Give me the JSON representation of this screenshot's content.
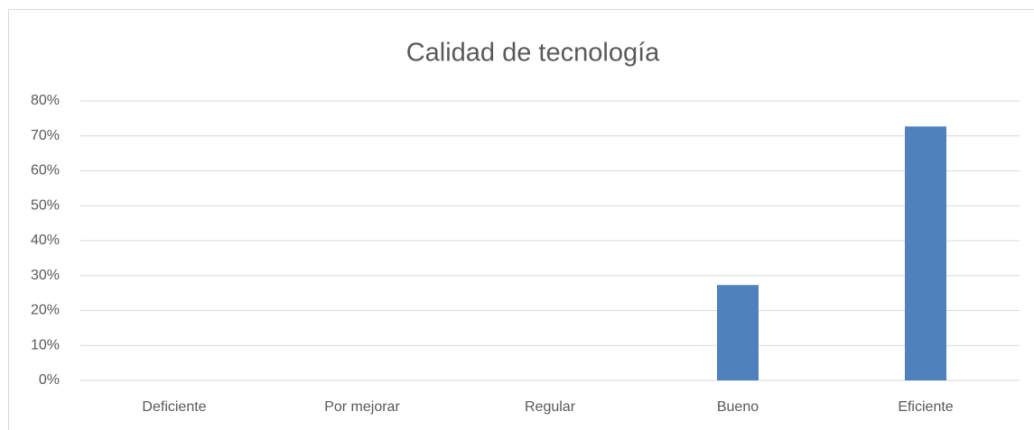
{
  "chart_data": {
    "type": "bar",
    "title": "Calidad de tecnología",
    "categories": [
      "Deficiente",
      "Por mejorar",
      "Regular",
      "Bueno",
      "Eficiente"
    ],
    "values": [
      0,
      0,
      0,
      27.3,
      72.7
    ],
    "color": "#4f81bd",
    "ylim": [
      0,
      80
    ],
    "yticks": [
      {
        "value": 0,
        "label": "0%"
      },
      {
        "value": 10,
        "label": "10%"
      },
      {
        "value": 20,
        "label": "20%"
      },
      {
        "value": 30,
        "label": "30%"
      },
      {
        "value": 40,
        "label": "40%"
      },
      {
        "value": 50,
        "label": "50%"
      },
      {
        "value": 60,
        "label": "60%"
      },
      {
        "value": 70,
        "label": "70%"
      },
      {
        "value": 80,
        "label": "80%"
      }
    ],
    "grid": true
  }
}
